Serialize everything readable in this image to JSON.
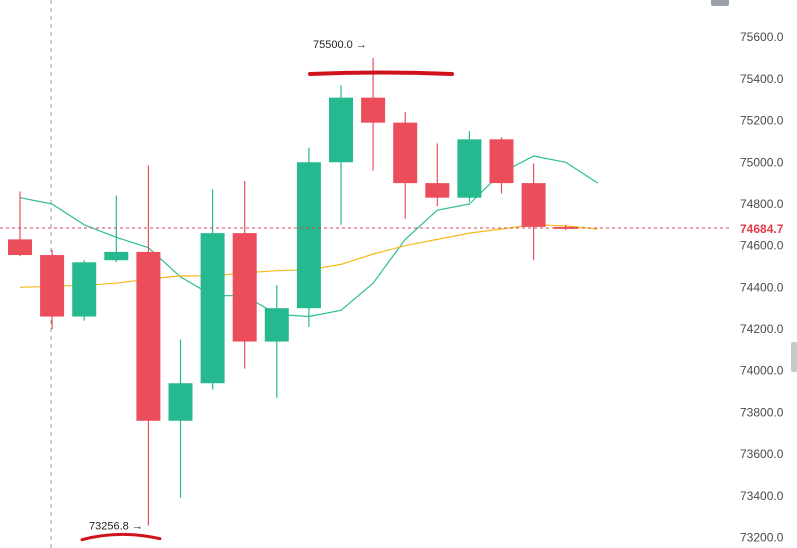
{
  "chart_data": {
    "type": "candlestick",
    "title": "",
    "xlabel": "",
    "ylabel": "",
    "ylim": [
      73200,
      75800
    ],
    "y_ticks": [
      73200,
      73400,
      73600,
      73800,
      74000,
      74200,
      74400,
      74600,
      74800,
      75000,
      75200,
      75400,
      75600
    ],
    "y_tick_labels": [
      "73200.0",
      "73400.0",
      "73600.0",
      "73800.0",
      "74000.0",
      "74200.0",
      "74400.0",
      "74600.0",
      "74800.0",
      "75000.0",
      "75200.0",
      "75400.0",
      "75600.0"
    ],
    "grid": false,
    "candles": [
      {
        "open": 74630,
        "high": 74860,
        "low": 74550,
        "close": 74555
      },
      {
        "open": 74555,
        "high": 74580,
        "low": 74200,
        "close": 74260
      },
      {
        "open": 74260,
        "high": 74530,
        "low": 74240,
        "close": 74520
      },
      {
        "open": 74530,
        "high": 74840,
        "low": 74520,
        "close": 74570
      },
      {
        "open": 74570,
        "high": 74985,
        "low": 73256.8,
        "close": 73760
      },
      {
        "open": 73760,
        "high": 74150,
        "low": 73390,
        "close": 73940
      },
      {
        "open": 73940,
        "high": 74870,
        "low": 73910,
        "close": 74660
      },
      {
        "open": 74660,
        "high": 74910,
        "low": 74010,
        "close": 74140
      },
      {
        "open": 74140,
        "high": 74410,
        "low": 73870,
        "close": 74300
      },
      {
        "open": 74300,
        "high": 75070,
        "low": 74210,
        "close": 75000
      },
      {
        "open": 75000,
        "high": 75370,
        "low": 74700,
        "close": 75310
      },
      {
        "open": 75310,
        "high": 75500,
        "low": 74960,
        "close": 75190
      },
      {
        "open": 75190,
        "high": 75240,
        "low": 74730,
        "close": 74900
      },
      {
        "open": 74900,
        "high": 75090,
        "low": 74790,
        "close": 74830
      },
      {
        "open": 74830,
        "high": 75150,
        "low": 74810,
        "close": 75110
      },
      {
        "open": 75110,
        "high": 75120,
        "low": 74850,
        "close": 74900
      },
      {
        "open": 74900,
        "high": 74995,
        "low": 74530,
        "close": 74690
      },
      {
        "open": 74690,
        "high": 74700,
        "low": 74675,
        "close": 74684.7
      }
    ],
    "series": [
      {
        "type": "line",
        "color": "#2bbd96",
        "values": [
          74830,
          74800,
          74700,
          74640,
          74590,
          74450,
          74360,
          74360,
          74270,
          74260,
          74290,
          74420,
          74630,
          74770,
          74800,
          74950,
          75030,
          75000,
          74900
        ]
      },
      {
        "type": "line",
        "color": "#f5b91b",
        "values": [
          74400,
          74405,
          74410,
          74420,
          74440,
          74455,
          74455,
          74470,
          74480,
          74485,
          74510,
          74560,
          74600,
          74630,
          74660,
          74680,
          74700,
          74695,
          74680
        ]
      }
    ],
    "current_price": {
      "value": 74684.7,
      "label": "74684.7"
    },
    "annotations": [
      {
        "kind": "high",
        "label": "75500.0",
        "arrow": "→"
      },
      {
        "kind": "low",
        "label": "73256.8",
        "arrow": "→"
      }
    ],
    "colors": {
      "up": "#26b88e",
      "down": "#ec4d5a",
      "ma_fast": "#2bbd96",
      "ma_slow": "#f5b91b",
      "price_line": "#d24a55",
      "crosshair": "#9a9a9a",
      "markup": "#d0121d",
      "axis_text": "#4a4a4a"
    }
  }
}
